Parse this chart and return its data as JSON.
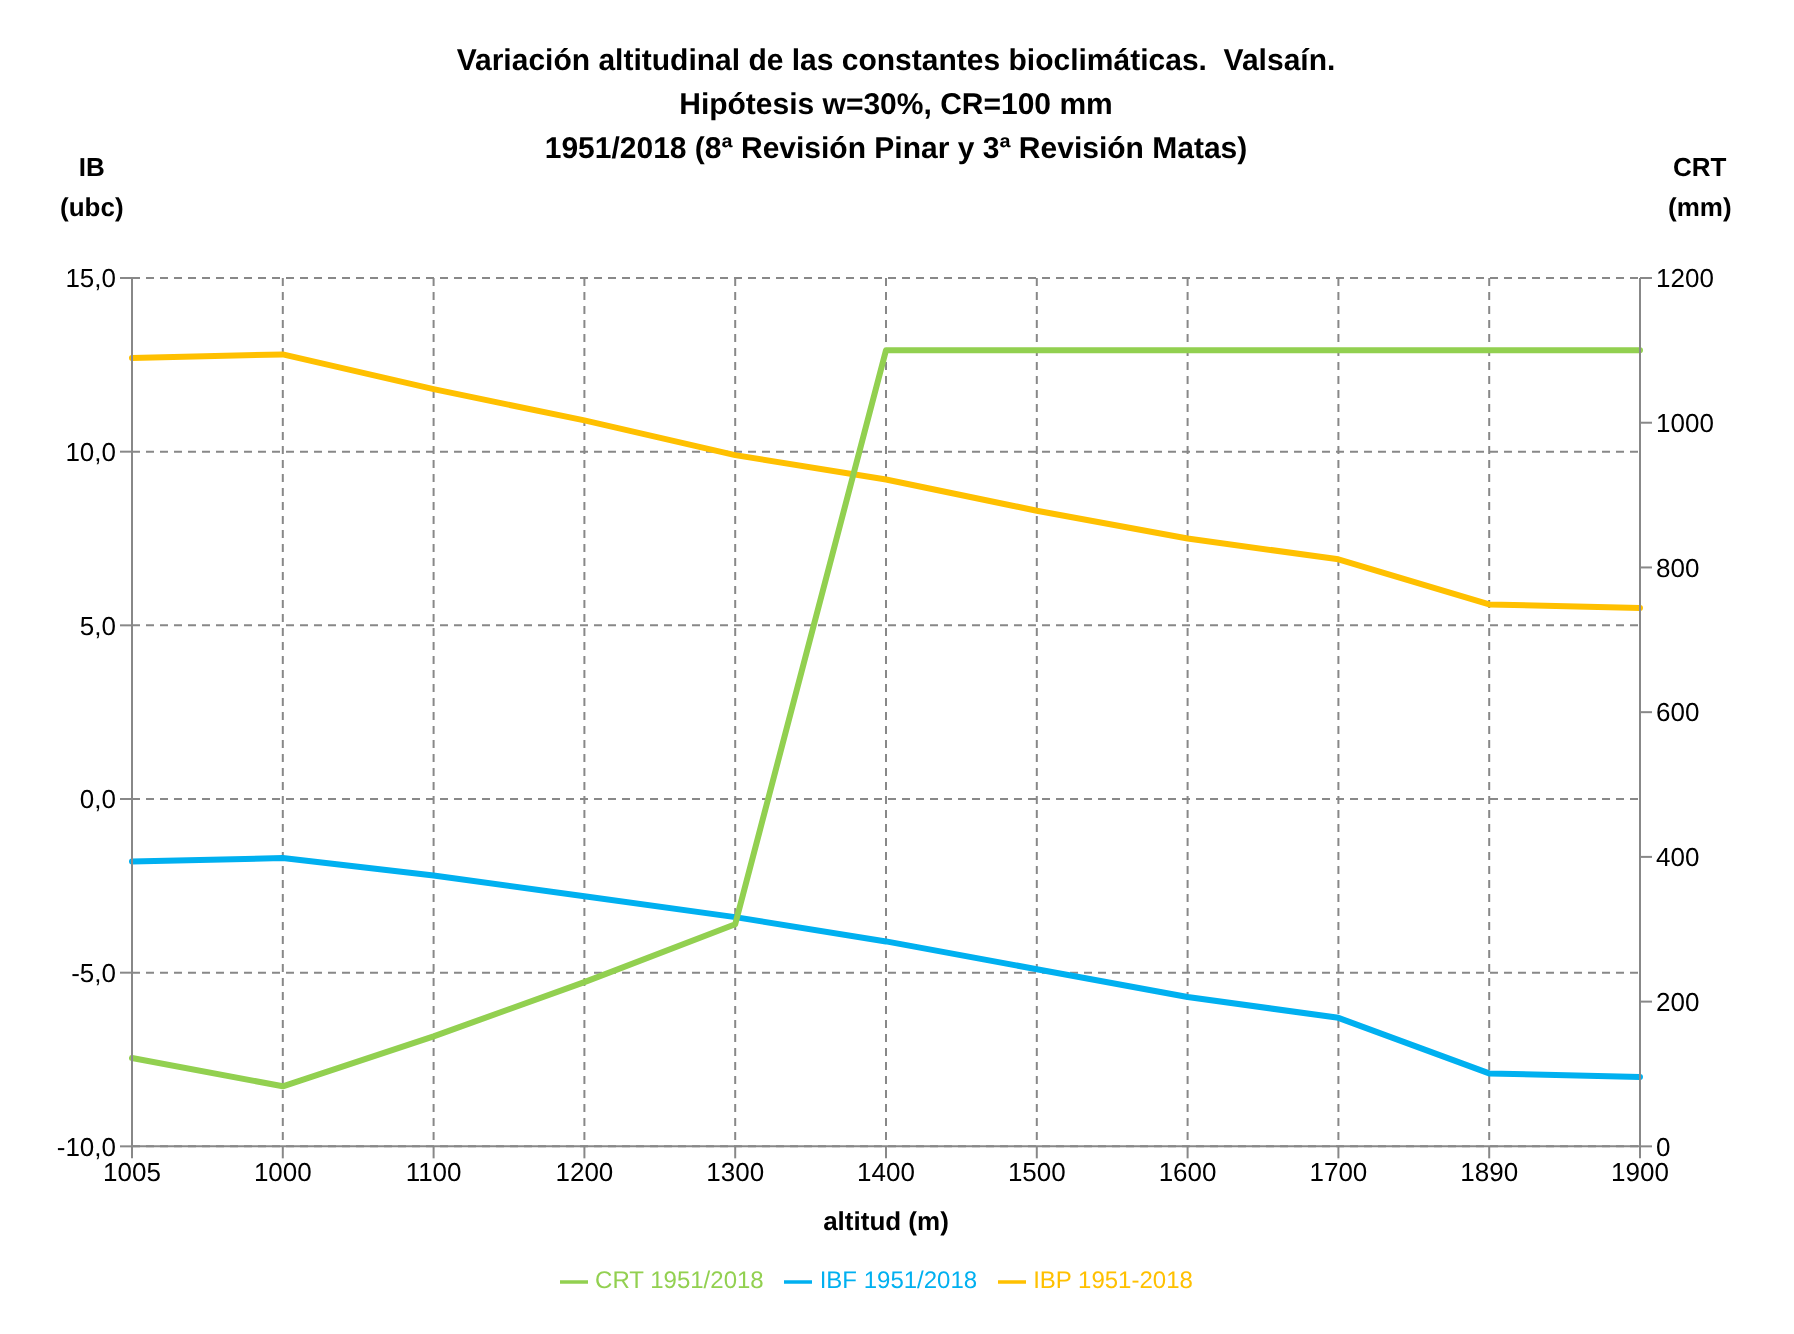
{
  "chart_data": {
    "type": "line",
    "title": "Variación altitudinal de las constantes bioclimáticas.  Valsaín.\nHipótesis w=30%, CR=100 mm\n1951/2018 (8ª Revisión Pinar y 3ª Revisión Matas)",
    "xlabel": "altitud (m)",
    "ylabel": "IB\n(ubc)",
    "y2label": "CRT\n(mm)",
    "categories": [
      "1005",
      "1000",
      "1100",
      "1200",
      "1300",
      "1400",
      "1500",
      "1600",
      "1700",
      "1890",
      "1900"
    ],
    "series": [
      {
        "name": "IBF 1951/2018",
        "color": "#00b0f0",
        "values": [
          -1.8,
          -1.7,
          -2.2,
          -2.8,
          -3.4,
          -4.1,
          -4.9,
          -5.7,
          -6.3,
          -7.9,
          -8.0
        ]
      },
      {
        "name": "IBP 1951-2018",
        "color": "#ffc000",
        "values": [
          12.7,
          12.8,
          11.8,
          10.9,
          9.9,
          9.2,
          8.3,
          7.5,
          6.9,
          5.6,
          5.5
        ]
      },
      {
        "name": "CRT 1951/2018",
        "color": "#92d050",
        "axis": "y2",
        "values": [
          122,
          83,
          152,
          227,
          307,
          1100,
          1100,
          1100,
          1100,
          1100,
          1100
        ]
      }
    ],
    "ylim": [
      -10,
      15
    ],
    "yticks": [
      {
        "value": -10,
        "label": "-10,0"
      },
      {
        "value": -5,
        "label": "-5,0"
      },
      {
        "value": 0,
        "label": "0,0"
      },
      {
        "value": 5,
        "label": "5,0"
      },
      {
        "value": 10,
        "label": "10,0"
      },
      {
        "value": 15,
        "label": "15,0"
      }
    ],
    "y2lim": [
      0,
      1200
    ],
    "y2ticks": [
      0,
      200,
      400,
      600,
      800,
      1000,
      1200
    ],
    "grid": true,
    "legend": "bottom",
    "marker": "none",
    "line_style": "solid"
  }
}
